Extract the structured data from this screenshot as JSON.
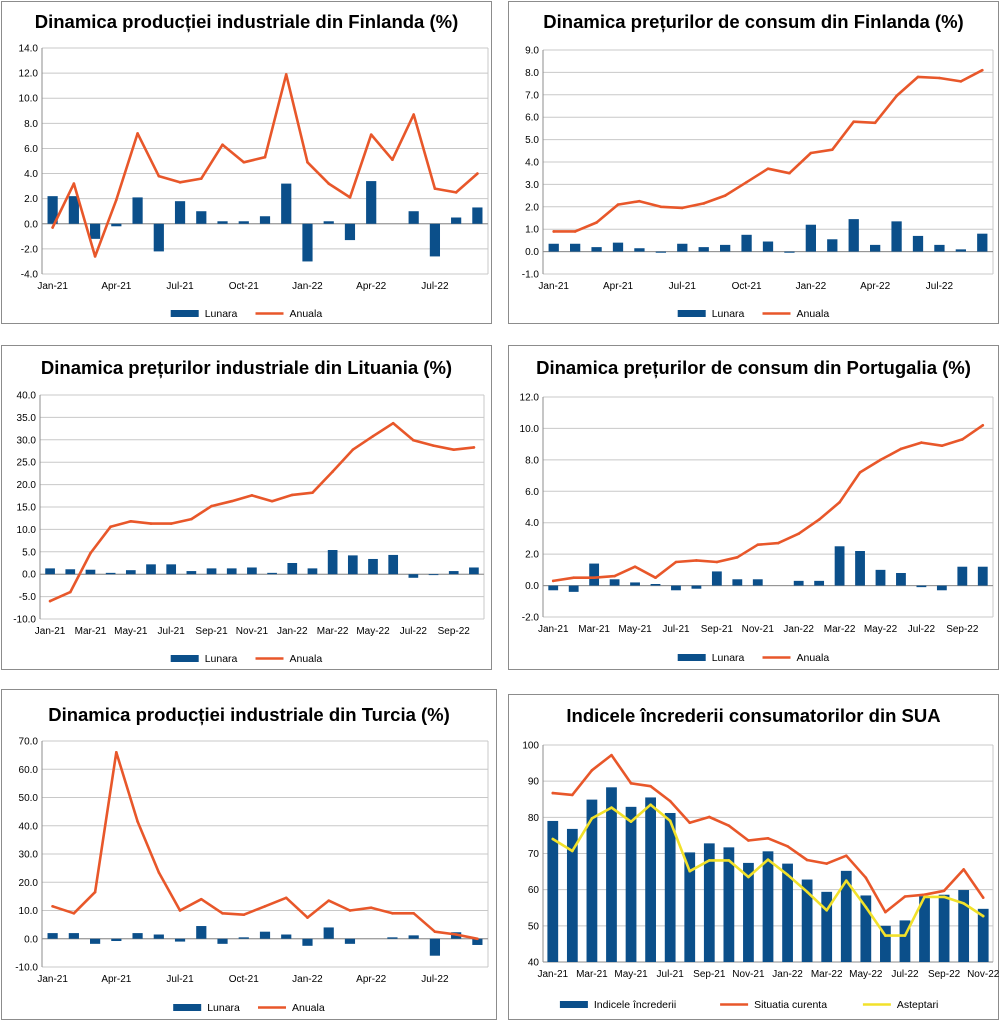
{
  "colors": {
    "bar": "#0b4f8a",
    "line_red": "#e8572a",
    "line_yellow": "#f2e12a",
    "grid": "#c8c8c8",
    "axis": "#8c8c8c"
  },
  "chart_data": [
    {
      "type": "bar+line",
      "title": "Dinamica producției industriale din Finlanda (%)",
      "ylim": [
        -4,
        14
      ],
      "ystep": 2,
      "ydecimals": 1,
      "xlabels": [
        "Jan-21",
        "Apr-21",
        "Jul-21",
        "Oct-21",
        "Jan-22",
        "Apr-22",
        "Jul-22"
      ],
      "xlabel_every": 3,
      "series": [
        {
          "name": "Lunara",
          "kind": "bar",
          "color": "#0b4f8a",
          "values": [
            2.2,
            2.2,
            -1.2,
            -0.2,
            2.1,
            -2.2,
            1.8,
            1.0,
            0.2,
            0.2,
            0.6,
            3.2,
            -3.0,
            0.2,
            -1.3,
            3.4,
            null,
            1.0,
            -2.6,
            0.5,
            1.3
          ]
        },
        {
          "name": "Anuala",
          "kind": "line",
          "color": "#e8572a",
          "values": [
            -0.3,
            3.2,
            -2.6,
            1.9,
            7.2,
            3.8,
            3.3,
            3.6,
            6.3,
            4.9,
            5.3,
            11.9,
            4.9,
            3.2,
            2.1,
            7.1,
            5.1,
            8.7,
            2.8,
            2.5,
            4.0
          ]
        }
      ]
    },
    {
      "type": "bar+line",
      "title": "Dinamica prețurilor de consum din Finlanda (%)",
      "ylim": [
        -1,
        9
      ],
      "ystep": 1,
      "ydecimals": 1,
      "xlabels": [
        "Jan-21",
        "Apr-21",
        "Jul-21",
        "Oct-21",
        "Jan-22",
        "Apr-22",
        "Jul-22"
      ],
      "xlabel_every": 3,
      "series": [
        {
          "name": "Lunara",
          "kind": "bar",
          "color": "#0b4f8a",
          "values": [
            0.35,
            0.35,
            0.2,
            0.4,
            0.15,
            -0.05,
            0.35,
            0.2,
            0.3,
            0.75,
            0.45,
            -0.05,
            1.2,
            0.55,
            1.45,
            0.3,
            1.35,
            0.7,
            0.3,
            0.1,
            0.8
          ]
        },
        {
          "name": "Anuala",
          "kind": "line",
          "color": "#e8572a",
          "values": [
            0.9,
            0.9,
            1.3,
            2.1,
            2.25,
            2.0,
            1.95,
            2.15,
            2.5,
            3.1,
            3.7,
            3.5,
            4.4,
            4.55,
            5.8,
            5.75,
            6.95,
            7.8,
            7.75,
            7.6,
            8.1
          ]
        }
      ]
    },
    {
      "type": "bar+line",
      "title": "Dinamica prețurilor industriale din Lituania (%)",
      "ylim": [
        -10,
        40
      ],
      "ystep": 5,
      "ydecimals": 1,
      "xlabels": [
        "Jan-21",
        "Mar-21",
        "May-21",
        "Jul-21",
        "Sep-21",
        "Nov-21",
        "Jan-22",
        "Mar-22",
        "May-22",
        "Jul-22",
        "Sep-22"
      ],
      "xlabel_every": 2,
      "series": [
        {
          "name": "Lunara",
          "kind": "bar",
          "color": "#0b4f8a",
          "values": [
            1.3,
            1.1,
            1.0,
            0.3,
            0.9,
            2.2,
            2.2,
            0.7,
            1.3,
            1.3,
            1.5,
            0.3,
            2.5,
            1.3,
            5.4,
            4.2,
            3.4,
            4.3,
            -0.8,
            -0.2,
            0.7,
            1.5
          ]
        },
        {
          "name": "Anuala",
          "kind": "line",
          "color": "#e8572a",
          "values": [
            -6.0,
            -4.0,
            4.7,
            10.6,
            11.8,
            11.3,
            11.3,
            12.3,
            15.2,
            16.3,
            17.6,
            16.3,
            17.7,
            18.2,
            22.9,
            27.8,
            30.8,
            33.7,
            29.9,
            28.7,
            27.8,
            28.3
          ]
        }
      ]
    },
    {
      "type": "bar+line",
      "title": "Dinamica prețurilor de consum din Portugalia (%)",
      "ylim": [
        -2,
        12
      ],
      "ystep": 2,
      "ydecimals": 1,
      "xlabels": [
        "Jan-21",
        "Mar-21",
        "May-21",
        "Jul-21",
        "Sep-21",
        "Nov-21",
        "Jan-22",
        "Mar-22",
        "May-22",
        "Jul-22",
        "Sep-22"
      ],
      "xlabel_every": 2,
      "series": [
        {
          "name": "Lunara",
          "kind": "bar",
          "color": "#0b4f8a",
          "values": [
            -0.3,
            -0.4,
            1.4,
            0.4,
            0.2,
            0.1,
            -0.3,
            -0.2,
            0.9,
            0.4,
            0.4,
            null,
            0.3,
            0.3,
            2.5,
            2.2,
            1.0,
            0.8,
            -0.1,
            -0.3,
            1.2,
            1.2
          ]
        },
        {
          "name": "Anuala",
          "kind": "line",
          "color": "#e8572a",
          "values": [
            0.3,
            0.5,
            0.5,
            0.6,
            1.2,
            0.5,
            1.5,
            1.6,
            1.5,
            1.8,
            2.6,
            2.7,
            3.3,
            4.2,
            5.3,
            7.2,
            8.0,
            8.7,
            9.1,
            8.9,
            9.3,
            10.2
          ]
        }
      ]
    },
    {
      "type": "bar+line",
      "title": "Dinamica producției industriale din Turcia (%)",
      "ylim": [
        -10,
        70
      ],
      "ystep": 10,
      "ydecimals": 1,
      "xlabels": [
        "Jan-21",
        "Apr-21",
        "Jul-21",
        "Oct-21",
        "Jan-22",
        "Apr-22",
        "Jul-22"
      ],
      "xlabel_every": 3,
      "series": [
        {
          "name": "Lunara",
          "kind": "bar",
          "color": "#0b4f8a",
          "values": [
            2.0,
            2.0,
            -1.8,
            -0.8,
            2.0,
            1.5,
            -1.0,
            4.5,
            -1.8,
            0.5,
            2.5,
            1.5,
            -2.5,
            4.0,
            -1.8,
            null,
            0.5,
            1.2,
            -6.0,
            2.3,
            -2.2
          ]
        },
        {
          "name": "Anuala",
          "kind": "line",
          "color": "#e8572a",
          "values": [
            11.5,
            9.0,
            16.5,
            66.0,
            41.5,
            23.5,
            10.0,
            14.0,
            9.0,
            8.5,
            11.5,
            14.5,
            7.5,
            13.5,
            10.0,
            11.0,
            9.0,
            9.0,
            2.5,
            1.5,
            0.0
          ]
        }
      ]
    },
    {
      "type": "bar+line",
      "title": "Indicele încrederii consumatorilor din SUA",
      "ylim": [
        40,
        100
      ],
      "ystep": 10,
      "ydecimals": 0,
      "xlabels": [
        "Jan-21",
        "Mar-21",
        "May-21",
        "Jul-21",
        "Sep-21",
        "Nov-21",
        "Jan-22",
        "Mar-22",
        "May-22",
        "Jul-22",
        "Sep-22",
        "Nov-22"
      ],
      "xlabel_every": 2,
      "series": [
        {
          "name": "Indicele încrederii",
          "kind": "bar",
          "color": "#0b4f8a",
          "values": [
            79.0,
            76.8,
            84.9,
            88.3,
            82.9,
            85.5,
            81.2,
            70.3,
            72.8,
            71.7,
            67.4,
            70.6,
            67.2,
            62.8,
            59.4,
            65.2,
            58.4,
            50.0,
            51.5,
            58.2,
            58.6,
            59.9,
            54.7
          ]
        },
        {
          "name": "Situatia curenta",
          "kind": "line",
          "color": "#e8572a",
          "values": [
            86.7,
            86.2,
            93.0,
            97.2,
            89.4,
            88.6,
            84.5,
            78.5,
            80.1,
            77.7,
            73.6,
            74.2,
            72.0,
            68.2,
            67.2,
            69.4,
            63.3,
            53.8,
            58.1,
            58.6,
            59.7,
            65.6,
            57.8
          ]
        },
        {
          "name": "Asteptari",
          "kind": "line",
          "color": "#f2e12a",
          "values": [
            74.0,
            70.7,
            79.7,
            82.7,
            78.8,
            83.5,
            79.0,
            65.1,
            68.1,
            68.1,
            63.5,
            68.3,
            64.1,
            59.4,
            54.3,
            62.5,
            55.2,
            47.3,
            47.3,
            58.0,
            58.0,
            56.2,
            52.7
          ]
        }
      ]
    }
  ]
}
